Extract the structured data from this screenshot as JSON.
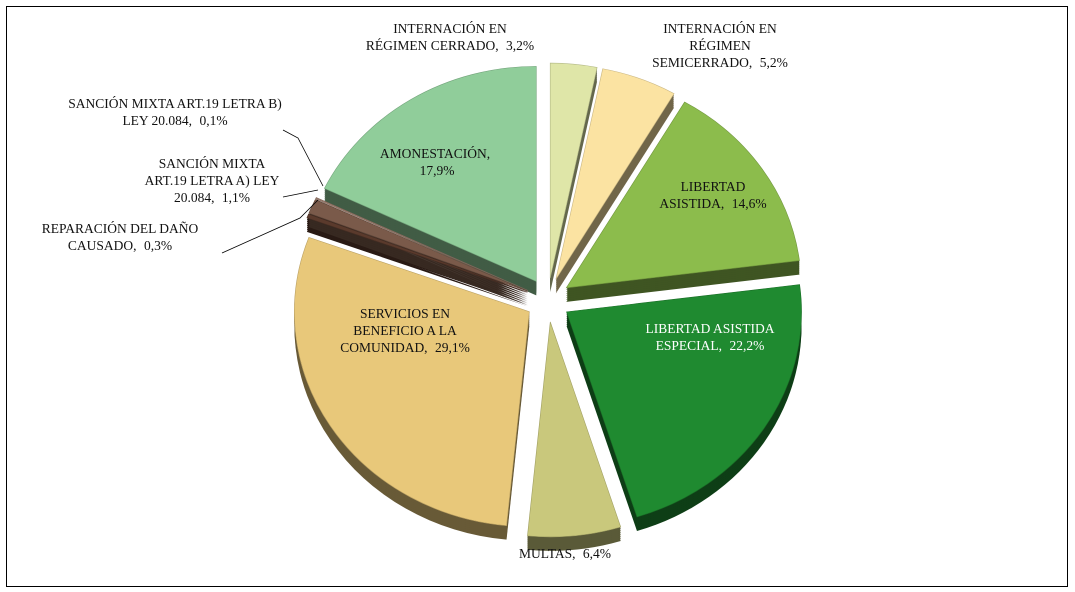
{
  "chart_data": {
    "type": "pie",
    "categories": [
      "INTERNACIÓN EN RÉGIMEN CERRADO,",
      "INTERNACIÓN EN RÉGIMEN SEMICERRADO,",
      "LIBERTAD ASISTIDA,",
      "LIBERTAD ASISTIDA ESPECIAL,",
      "MULTAS,",
      "SERVICIOS EN BENEFICIO A LA COMUNIDAD,",
      "REPARACIÓN DEL DAÑO CAUSADO,",
      "SANCIÓN MIXTA ART.19 LETRA A) LEY 20.084,",
      "SANCIÓN MIXTA ART.19 LETRA B) LEY 20.084,",
      "AMONESTACIÓN,"
    ],
    "values": [
      3.2,
      5.2,
      14.6,
      22.2,
      6.4,
      29.1,
      0.3,
      1.1,
      0.1,
      17.9
    ],
    "value_labels": [
      "3,2%",
      "5,2%",
      "14,6%",
      "22,2%",
      "6,4%",
      "29,1%",
      "0,3%",
      "1,1%",
      "0,1%",
      "17,9%"
    ],
    "colors": [
      "#dfe6a8",
      "#fbe3a2",
      "#8cbc4c",
      "#1f8a30",
      "#c9c87c",
      "#e8c87a",
      "#5a3a2c",
      "#7a5a4a",
      "#a08070",
      "#90cd9a"
    ]
  }
}
